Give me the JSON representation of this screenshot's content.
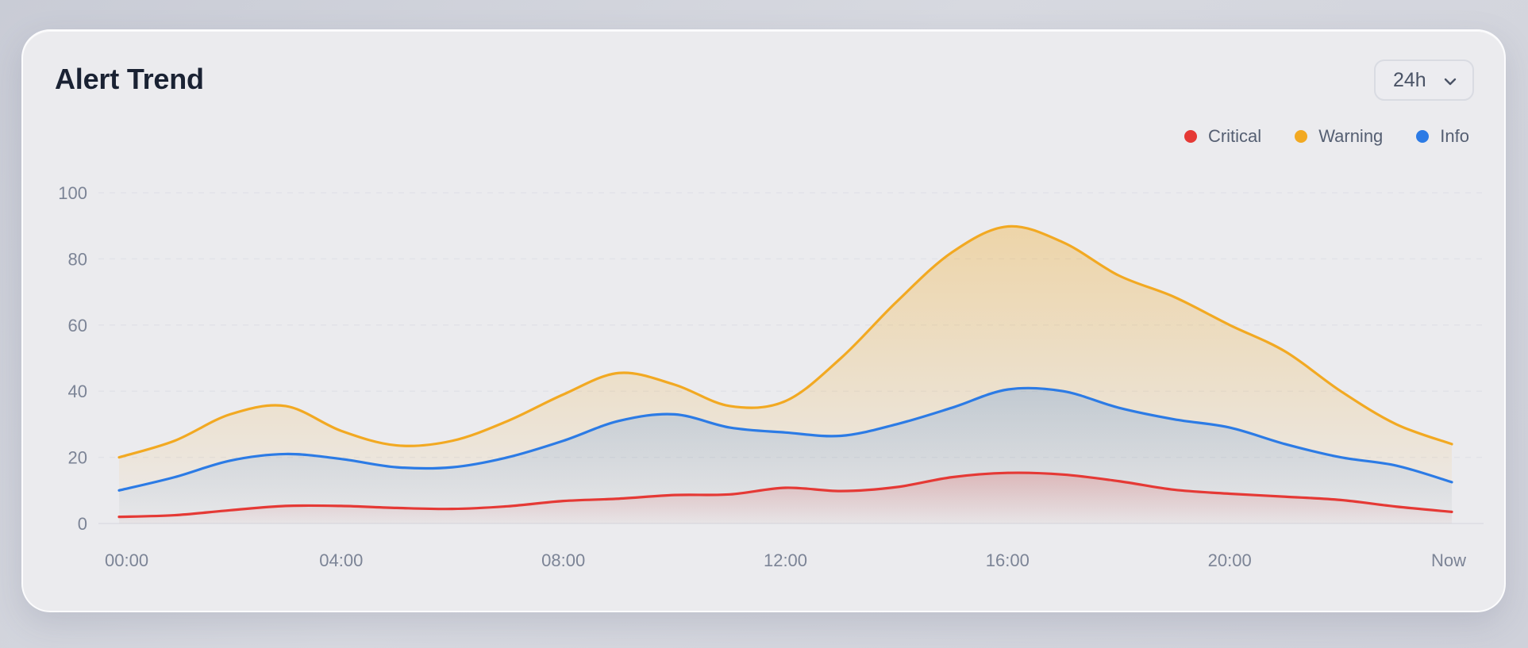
{
  "header": {
    "title": "Alert Trend"
  },
  "range_select": {
    "value": "24h",
    "icon": "chevron-down-icon"
  },
  "chart_data": {
    "type": "area",
    "title": "Alert Trend",
    "xlabel": "",
    "ylabel": "",
    "x_ticks": [
      "00:00",
      "04:00",
      "08:00",
      "12:00",
      "16:00",
      "20:00",
      "Now"
    ],
    "x": [
      0,
      1,
      2,
      3,
      4,
      5,
      6,
      7,
      8,
      9,
      10,
      11,
      12,
      13,
      14,
      15,
      16,
      17,
      18,
      19,
      20,
      21,
      22,
      23,
      24
    ],
    "y_ticks": [
      0,
      20,
      40,
      60,
      80,
      100
    ],
    "ylim": [
      0,
      100
    ],
    "grid": "horizontal-dashed",
    "legend": "top-right",
    "series": [
      {
        "name": "Critical",
        "color": "#e53935",
        "values": [
          2,
          2.5,
          4,
          5.3,
          5.3,
          4.7,
          4.4,
          5.2,
          6.8,
          7.5,
          8.6,
          8.8,
          10.8,
          9.8,
          11,
          14,
          15.3,
          14.8,
          12.8,
          10.2,
          9,
          8.1,
          7.1,
          5.1,
          3.5
        ]
      },
      {
        "name": "Warning",
        "color": "#f2a922",
        "values": [
          20,
          25,
          33,
          35.5,
          28,
          23.6,
          25,
          31,
          39,
          45.5,
          42,
          35.5,
          37,
          50,
          67,
          82,
          89.8,
          85,
          75,
          68.5,
          60,
          52,
          40,
          30,
          24
        ]
      },
      {
        "name": "Info",
        "color": "#2c7be5",
        "values": [
          10,
          14,
          19,
          21,
          19.5,
          17,
          17,
          20,
          25,
          31,
          33,
          29,
          27.5,
          26.5,
          30,
          35,
          40.5,
          40,
          35,
          31.5,
          29,
          24,
          20,
          17.5,
          12.5
        ]
      }
    ]
  }
}
